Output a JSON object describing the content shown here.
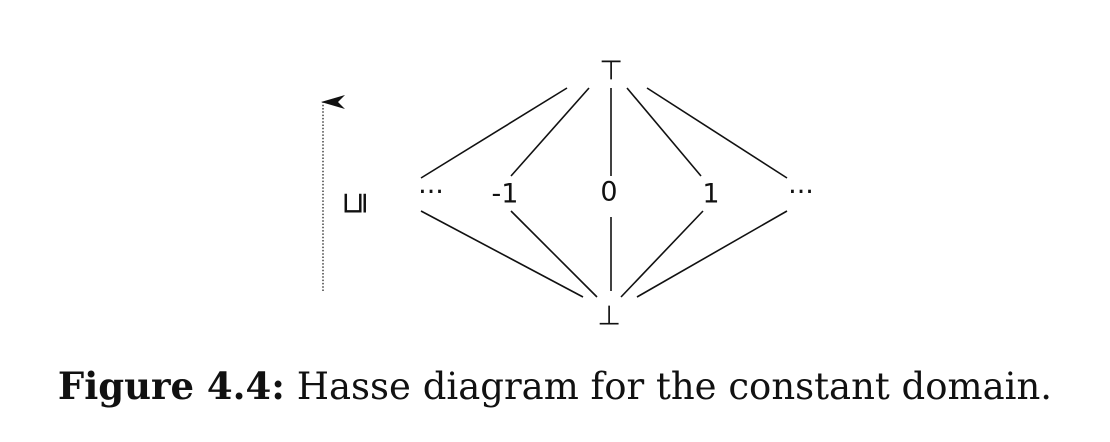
{
  "figure": {
    "caption_label": "Figure 4.4:",
    "caption_text": "Hasse diagram for the constant domain."
  },
  "diagram": {
    "order_symbol": "⊑",
    "nodes": {
      "top": "⊤",
      "bottom": "⊥",
      "left_ellipsis": "···",
      "minus_one": "-1",
      "zero": "0",
      "one": "1",
      "right_ellipsis": "···"
    },
    "edges": [
      [
        "top",
        "left_ellipsis"
      ],
      [
        "top",
        "minus_one"
      ],
      [
        "top",
        "zero"
      ],
      [
        "top",
        "one"
      ],
      [
        "top",
        "right_ellipsis"
      ],
      [
        "left_ellipsis",
        "bottom"
      ],
      [
        "minus_one",
        "bottom"
      ],
      [
        "zero",
        "bottom"
      ],
      [
        "one",
        "bottom"
      ],
      [
        "right_ellipsis",
        "bottom"
      ]
    ]
  }
}
